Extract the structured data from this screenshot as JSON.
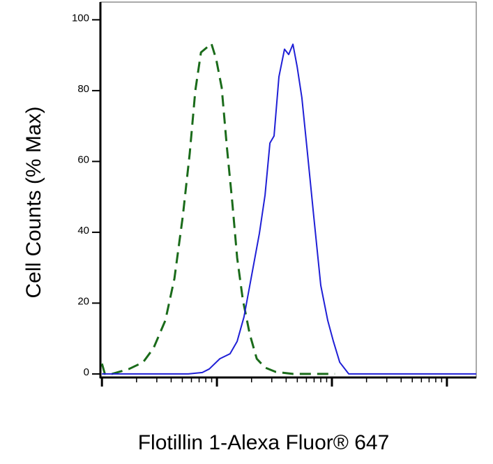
{
  "chart_data": {
    "type": "line",
    "ylabel": "Cell Counts (% Max)",
    "xlabel": "Flotillin 1-Alexa Fluor® 647",
    "xlog": true,
    "xlim": [
      0.97,
      1800
    ],
    "xticks": [
      1,
      10,
      100,
      1000
    ],
    "xticks_minor": [
      2,
      3,
      4,
      5,
      6,
      7,
      8,
      9,
      20,
      30,
      40,
      50,
      60,
      70,
      80,
      90,
      200,
      300,
      400,
      500,
      600,
      700,
      800,
      900
    ],
    "ylim": [
      -1,
      105
    ],
    "yticks": [
      0,
      20,
      40,
      60,
      80,
      100
    ],
    "series": [
      {
        "color": "#1a6b1a",
        "dash": true,
        "x": [
          1,
          1.06,
          1.22,
          1.72,
          2.28,
          2.81,
          3.56,
          4.27,
          5.05,
          5.8,
          6.49,
          7.26,
          8.11,
          8.95,
          9.86,
          11,
          12.2,
          13.6,
          15,
          16.8,
          19.3,
          22.2,
          26.2,
          32.3,
          45.8,
          69.5,
          106
        ],
        "values": [
          2.9,
          0,
          0,
          1.4,
          3.3,
          7.3,
          15.1,
          26.9,
          44.6,
          62.3,
          80,
          90.8,
          92.1,
          93.3,
          88.8,
          80.9,
          64.2,
          48.5,
          32.8,
          21,
          11.2,
          4.3,
          1.8,
          0.6,
          0,
          0,
          0
        ]
      },
      {
        "color": "#1f1fd6",
        "dash": false,
        "x": [
          1,
          5.64,
          7.46,
          8.58,
          10.6,
          13,
          15,
          17.2,
          19.8,
          23.4,
          26.2,
          28.9,
          31.4,
          34.6,
          38.7,
          42.1,
          45.8,
          49.8,
          54.8,
          60.5,
          69.5,
          80,
          92,
          103,
          117,
          140,
          281,
          1800
        ],
        "values": [
          0,
          0,
          0.4,
          1.4,
          4.3,
          5.7,
          9.2,
          16.1,
          26.9,
          39.7,
          50.5,
          65.2,
          67.2,
          83.9,
          91.7,
          90.2,
          93.1,
          86.8,
          78,
          64.2,
          44.6,
          25,
          15.1,
          9.2,
          3.3,
          0,
          0,
          0
        ]
      }
    ]
  }
}
